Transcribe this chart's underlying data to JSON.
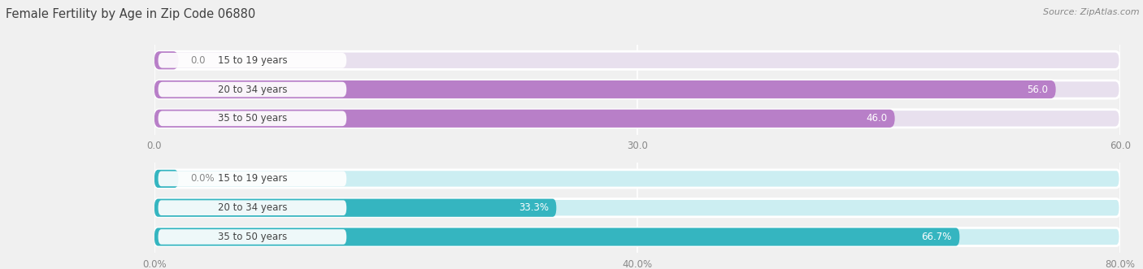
{
  "title": "Female Fertility by Age in Zip Code 06880",
  "source": "Source: ZipAtlas.com",
  "top_chart": {
    "categories": [
      "15 to 19 years",
      "20 to 34 years",
      "35 to 50 years"
    ],
    "values": [
      0.0,
      56.0,
      46.0
    ],
    "max_value": 60.0,
    "tick_values": [
      0.0,
      30.0,
      60.0
    ],
    "tick_labels": [
      "0.0",
      "30.0",
      "60.0"
    ],
    "bar_color": "#b87fc8",
    "bar_bg_color": "#e8e0ee",
    "label_bg_color": "#ddd5e8"
  },
  "bottom_chart": {
    "categories": [
      "15 to 19 years",
      "20 to 34 years",
      "35 to 50 years"
    ],
    "values": [
      0.0,
      33.3,
      66.7
    ],
    "max_value": 80.0,
    "tick_values": [
      0.0,
      40.0,
      80.0
    ],
    "tick_labels": [
      "0.0%",
      "40.0%",
      "80.0%"
    ],
    "bar_color": "#35b5c0",
    "bar_bg_color": "#cceef2",
    "label_bg_color": "#b8e8ed"
  },
  "fig_bg_color": "#f0f0f0",
  "title_color": "#404040",
  "source_color": "#888888",
  "cat_label_color": "#444444",
  "val_label_color_white": "#ffffff",
  "val_label_color_dark": "#888888",
  "cat_label_bg": "#ffffff",
  "bar_height": 0.62,
  "label_fontsize": 8.5,
  "tick_fontsize": 8.5,
  "title_fontsize": 10.5,
  "source_fontsize": 8.0
}
